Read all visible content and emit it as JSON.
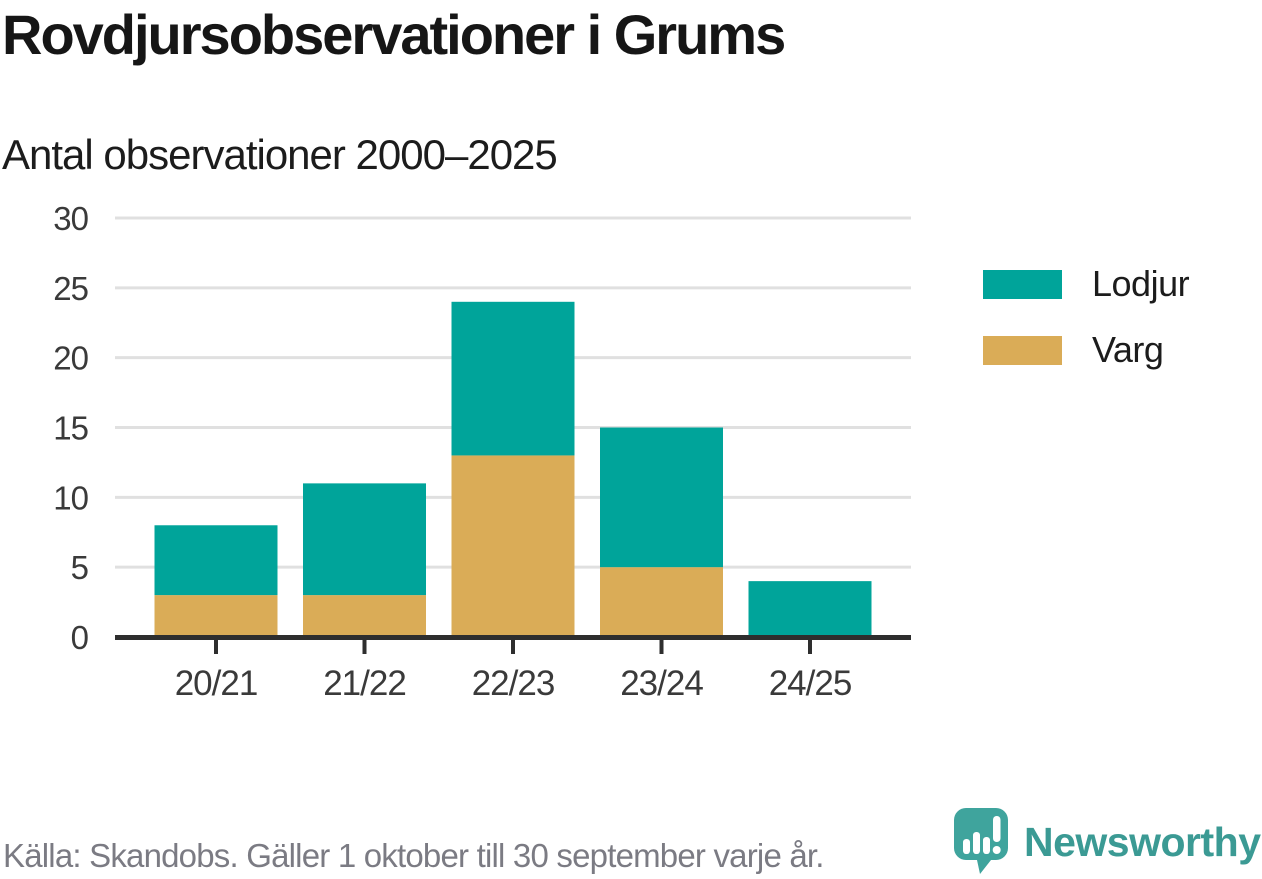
{
  "title": "Rovdjursobservationer i Grums",
  "subtitle": "Antal observationer 2000–2025",
  "source": "Källa: Skandobs. Gäller 1 oktober till 30 september varje år.",
  "brand": {
    "name": "Newsworthy",
    "icon": "bar-chart-speech-bubble-icon",
    "wordmark_color": "#3b9a94",
    "icon_color": "#3fa49d",
    "icon_glyph_color": "#ffffff"
  },
  "colors": {
    "lodjur": "#00a49a",
    "varg": "#daac57",
    "grid": "#e0e0e0",
    "axis": "#2e2e2e",
    "tick_text": "#3a3a3a"
  },
  "legend": [
    {
      "label": "Lodjur",
      "color": "#00a49a"
    },
    {
      "label": "Varg",
      "color": "#daac57"
    }
  ],
  "chart_data": {
    "type": "bar",
    "stacked": true,
    "title": "Rovdjursobservationer i Grums",
    "subtitle": "Antal observationer 2000–2025",
    "categories": [
      "20/21",
      "21/22",
      "22/23",
      "23/24",
      "24/25"
    ],
    "series": [
      {
        "name": "Varg",
        "color": "#daac57",
        "values": [
          3,
          3,
          13,
          5,
          0
        ]
      },
      {
        "name": "Lodjur",
        "color": "#00a49a",
        "values": [
          5,
          8,
          11,
          10,
          4
        ]
      }
    ],
    "totals": [
      8,
      11,
      24,
      15,
      4
    ],
    "xlabel": "",
    "ylabel": "",
    "ylim": [
      0,
      30
    ],
    "yticks": [
      0,
      5,
      10,
      15,
      20,
      25,
      30
    ],
    "grid": true,
    "legend_position": "right",
    "legend_order": [
      "Lodjur",
      "Varg"
    ]
  }
}
